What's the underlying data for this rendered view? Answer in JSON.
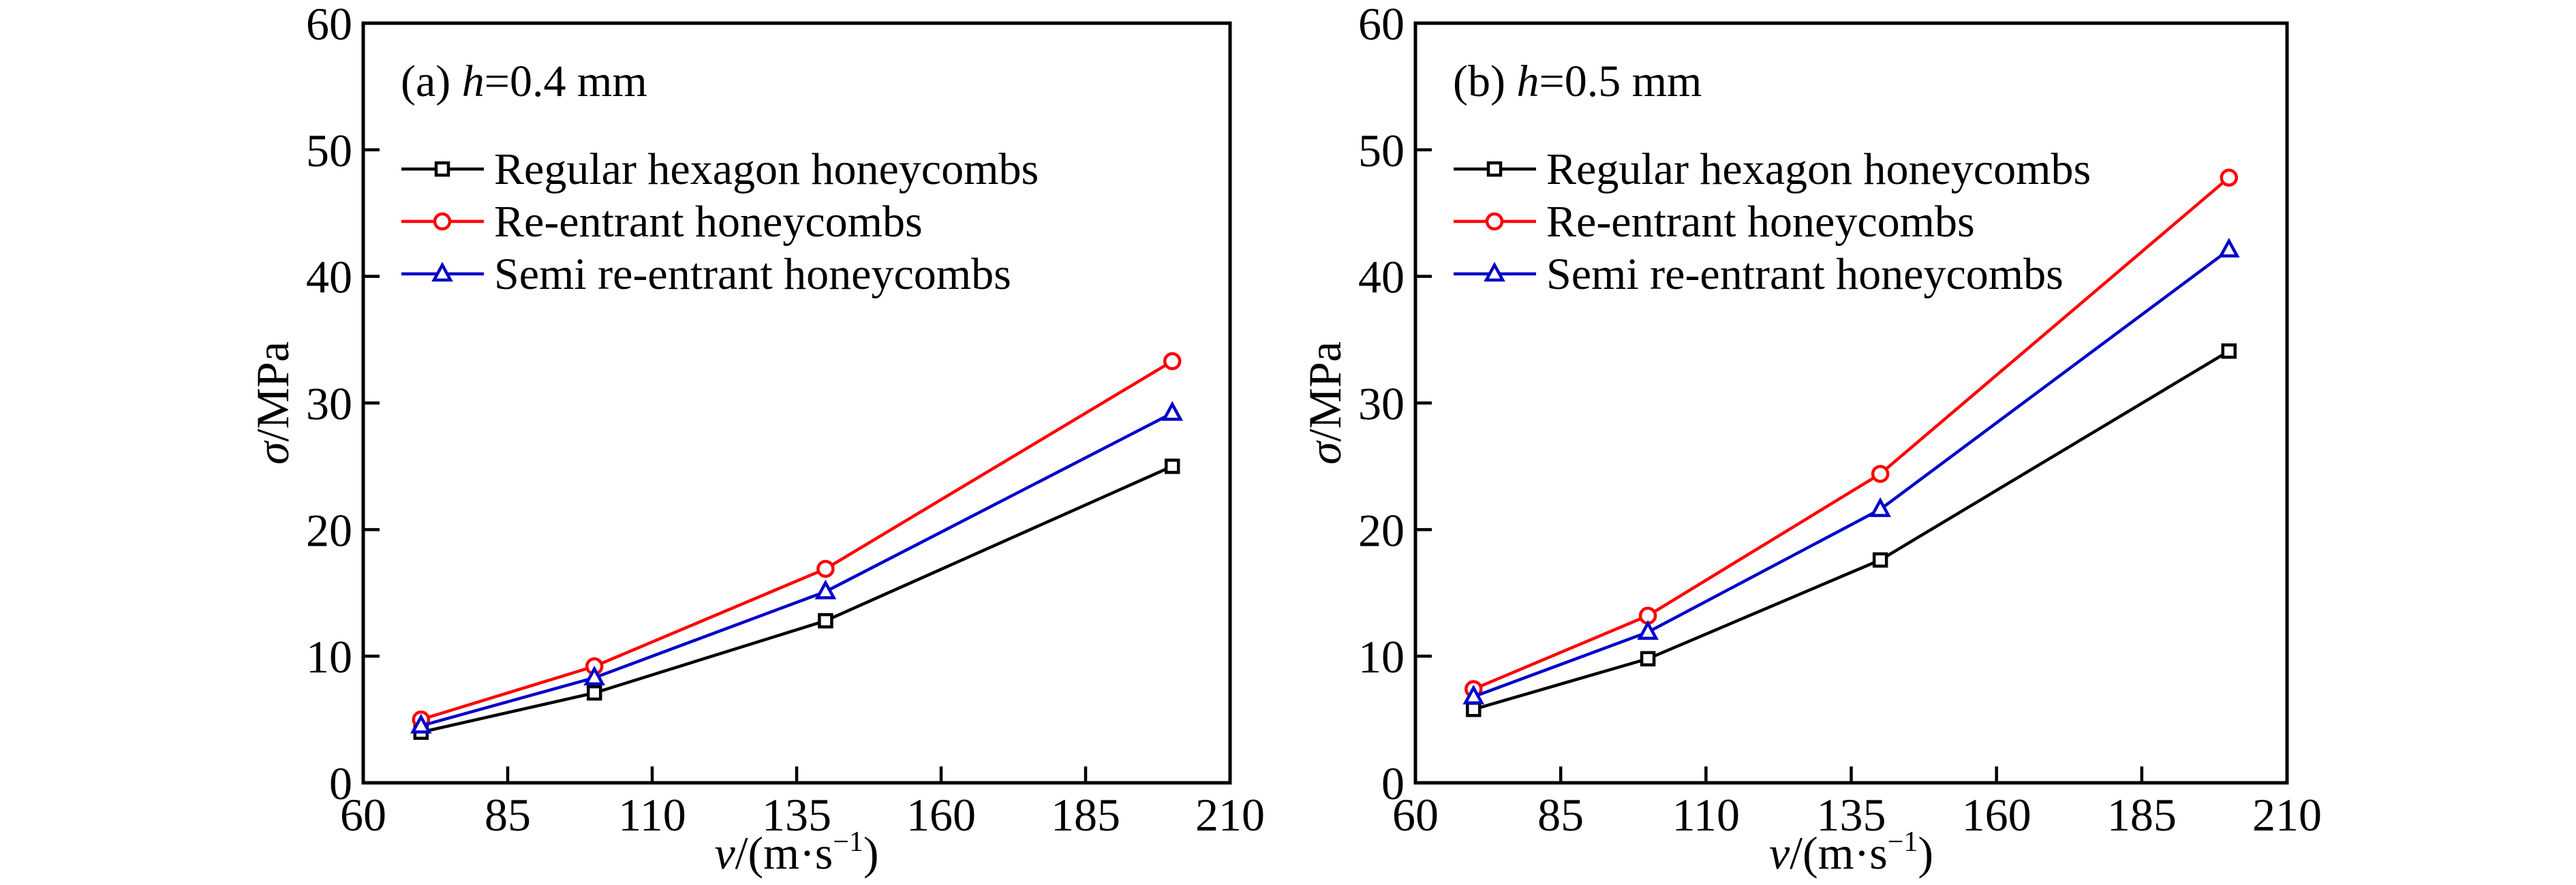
{
  "chart_data": [
    {
      "type": "line",
      "panel_label": "(a) ",
      "panel_var": "h",
      "panel_value": "=0.4 mm",
      "xlabel_var": "v",
      "xlabel_unit": "/(m·s",
      "xlabel_sup": "−1",
      "xlabel_close": ")",
      "ylabel_var": "σ",
      "ylabel_unit": "/MPa",
      "xlim": [
        60,
        210
      ],
      "ylim": [
        0,
        60
      ],
      "xticks": [
        60,
        85,
        110,
        135,
        160,
        185,
        210
      ],
      "yticks": [
        0,
        10,
        20,
        30,
        40,
        50,
        60
      ],
      "legend_placement": "top-left",
      "grid": false,
      "x": [
        70,
        100,
        140,
        200
      ],
      "series": [
        {
          "name": "Regular hexagon honeycombs",
          "color": "#000000",
          "marker": "square",
          "values": [
            4.0,
            7.1,
            12.8,
            25.0
          ]
        },
        {
          "name": "Re-entrant honeycombs",
          "color": "#ff0000",
          "marker": "circle",
          "values": [
            5.0,
            9.2,
            16.9,
            33.3
          ]
        },
        {
          "name": "Semi re-entrant honeycombs",
          "color": "#0000c8",
          "marker": "triangle",
          "values": [
            4.5,
            8.3,
            15.1,
            29.2
          ]
        }
      ]
    },
    {
      "type": "line",
      "panel_label": "(b) ",
      "panel_var": "h",
      "panel_value": "=0.5 mm",
      "xlabel_var": "v",
      "xlabel_unit": "/(m·s",
      "xlabel_sup": "−1",
      "xlabel_close": ")",
      "ylabel_var": "σ",
      "ylabel_unit": "/MPa",
      "xlim": [
        60,
        210
      ],
      "ylim": [
        0,
        60
      ],
      "xticks": [
        60,
        85,
        110,
        135,
        160,
        185,
        210
      ],
      "yticks": [
        0,
        10,
        20,
        30,
        40,
        50,
        60
      ],
      "legend_placement": "top-left",
      "grid": false,
      "x": [
        70,
        100,
        140,
        200
      ],
      "series": [
        {
          "name": "Regular hexagon honeycombs",
          "color": "#000000",
          "marker": "square",
          "values": [
            5.8,
            9.8,
            17.6,
            34.1
          ]
        },
        {
          "name": "Re-entrant honeycombs",
          "color": "#ff0000",
          "marker": "circle",
          "values": [
            7.4,
            13.2,
            24.4,
            47.8
          ]
        },
        {
          "name": "Semi re-entrant honeycombs",
          "color": "#0000c8",
          "marker": "triangle",
          "values": [
            6.8,
            11.9,
            21.6,
            42.1
          ]
        }
      ]
    }
  ]
}
